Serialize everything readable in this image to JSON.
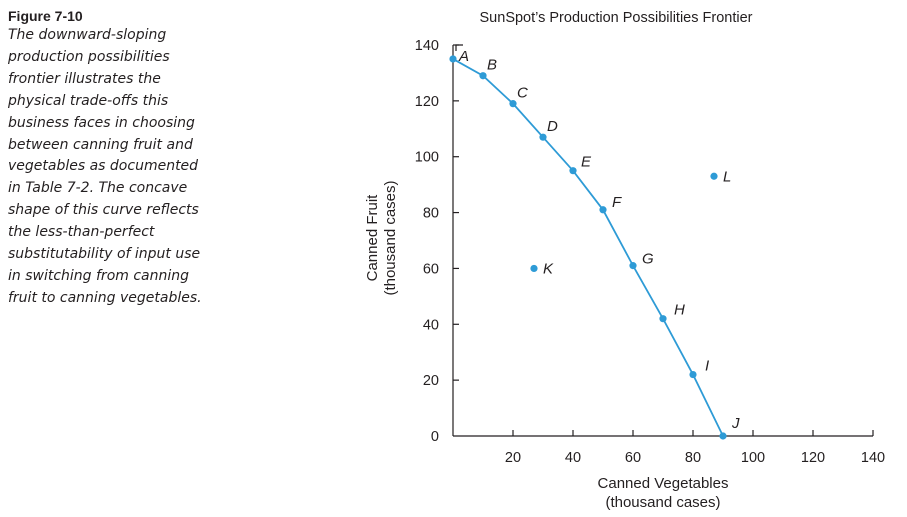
{
  "caption": {
    "figure_label": "Figure 7-10",
    "lines": [
      "The downward-sloping",
      "production possibilities",
      "frontier illustrates the",
      "physical trade-offs this",
      "business faces in choosing",
      "between canning fruit and",
      "vegetables as documented",
      "in Table 7-2. The concave",
      "shape of this curve reflects",
      "the less-than-perfect",
      "substitutability of input use",
      "in switching from canning",
      "fruit to canning vegetables."
    ]
  },
  "chart_data": {
    "type": "line",
    "title": "SunSpot’s Production Possibilities Frontier",
    "xlabel_lines": [
      "Canned Vegetables",
      "(thousand cases)"
    ],
    "ylabel_lines": [
      "Canned Fruit",
      "(thousand cases)"
    ],
    "xlim": [
      0,
      140
    ],
    "ylim": [
      0,
      140
    ],
    "xticks": [
      20,
      40,
      60,
      80,
      100,
      120,
      140
    ],
    "yticks": [
      0,
      20,
      40,
      60,
      80,
      100,
      120,
      140
    ],
    "series": [
      {
        "name": "Production Possibilities Frontier",
        "color": "#2e9bd6",
        "points": [
          {
            "label": "A",
            "x": 0,
            "y": 135
          },
          {
            "label": "B",
            "x": 10,
            "y": 129
          },
          {
            "label": "C",
            "x": 20,
            "y": 119
          },
          {
            "label": "D",
            "x": 30,
            "y": 107
          },
          {
            "label": "E",
            "x": 40,
            "y": 95
          },
          {
            "label": "F",
            "x": 50,
            "y": 81
          },
          {
            "label": "G",
            "x": 60,
            "y": 61
          },
          {
            "label": "H",
            "x": 70,
            "y": 42
          },
          {
            "label": "I",
            "x": 80,
            "y": 22
          },
          {
            "label": "J",
            "x": 90,
            "y": 0
          }
        ]
      }
    ],
    "extra_points": [
      {
        "label": "K",
        "x": 27,
        "y": 60
      },
      {
        "label": "L",
        "x": 87,
        "y": 93
      }
    ]
  }
}
